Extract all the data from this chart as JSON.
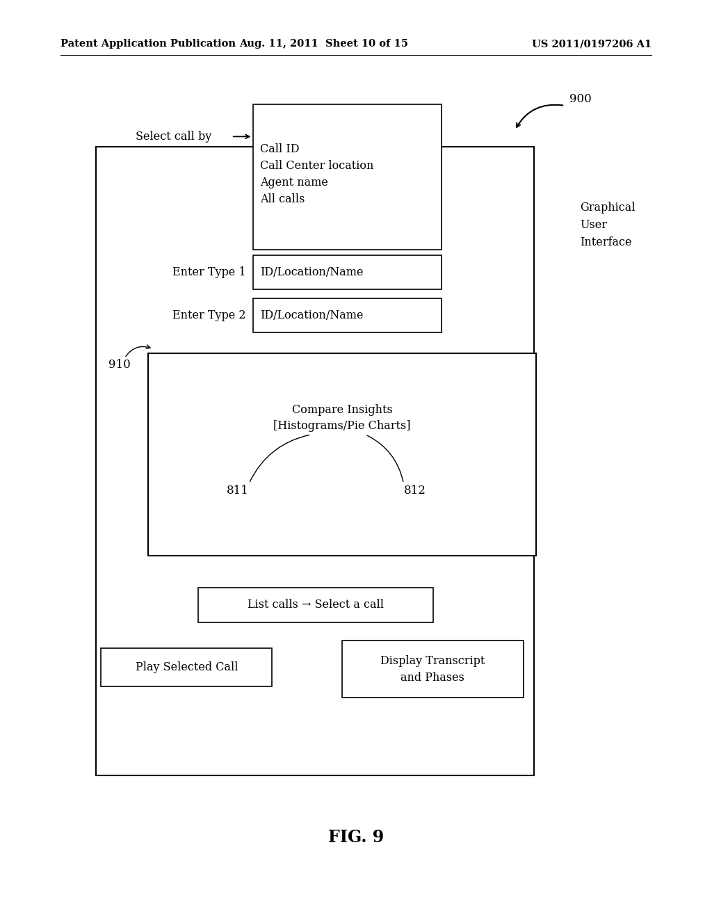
{
  "background_color": "#ffffff",
  "header_left": "Patent Application Publication",
  "header_center": "Aug. 11, 2011  Sheet 10 of 15",
  "header_right": "US 2011/0197206 A1",
  "figure_label": "FIG. 9",
  "ref_900": "900",
  "ref_910": "910",
  "ref_811": "811",
  "ref_812": "812",
  "dropdown_lines": [
    "Call ID",
    "Call Center location",
    "Agent name",
    "All calls"
  ],
  "enter_type1_label": "Enter Type 1",
  "enter_type1_text": "ID/Location/Name",
  "enter_type2_label": "Enter Type 2",
  "enter_type2_text": "ID/Location/Name",
  "select_call_label": "Select call by",
  "graphical_user_interface": "Graphical\nUser\nInterface",
  "compare_insights_text": "Compare Insights\n[Histograms/Pie Charts]",
  "list_calls_text": "List calls → Select a call",
  "play_call_text": "Play Selected Call",
  "display_transcript_text": "Display Transcript\nand Phases",
  "font_size_header": 10.5,
  "font_size_body": 11.5,
  "font_size_label": 12,
  "font_size_fig": 17
}
